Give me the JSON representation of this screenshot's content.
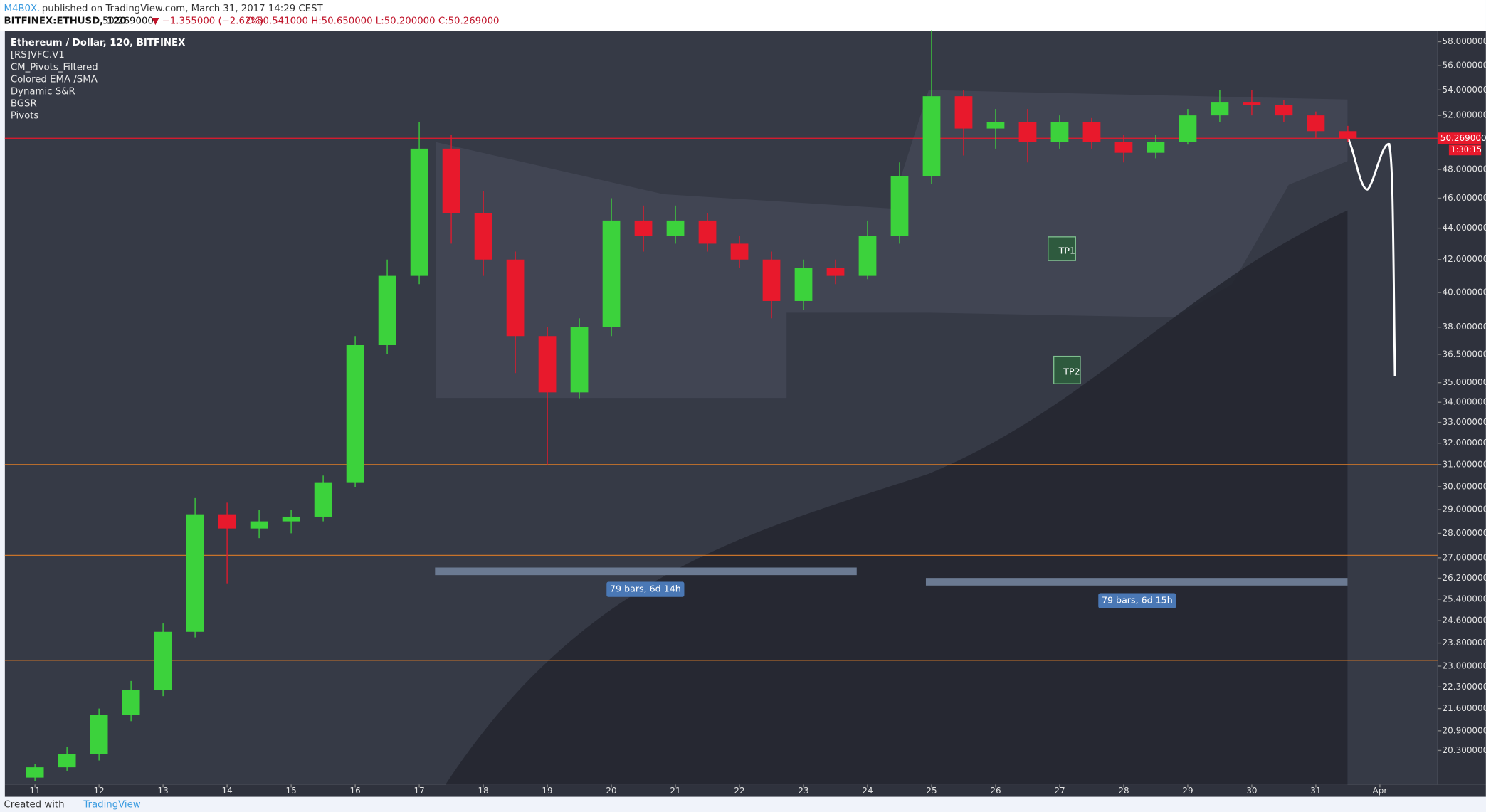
{
  "chart_data": {
    "type": "candlestick",
    "publisher": "M4B0X.",
    "published": "published on TradingView.com, March 31, 2017 14:29 CEST",
    "symbol": "BITFINEX:ETHUSD, 120",
    "price": "50.269000",
    "change": "▼ −1.355000 (−2.62%)",
    "ohlc_text": "O:50.541000 H:50.650000 L:50.200000 C:50.269000",
    "title": "Ethereum / Dollar, 120, BITFINEX",
    "indicators": [
      "[RS]VFC.V1",
      "CM_Pivots_Filtered",
      "Colored EMA /SMA",
      "Dynamic S&R",
      "BGSR",
      "Pivots"
    ],
    "x": [
      11,
      11.5,
      12,
      12.5,
      13,
      13.5,
      14,
      14.5,
      15,
      15.5,
      16,
      16.5,
      17,
      17.5,
      18,
      18.5,
      19,
      19.5,
      20,
      20.5,
      21,
      21.5,
      22,
      22.5,
      23,
      23.5,
      24,
      24.5,
      25,
      25.5,
      26,
      26.5,
      27,
      27.5,
      28,
      28.5,
      29,
      29.5,
      30,
      30.5,
      31,
      31.5
    ],
    "open": [
      19.5,
      19.8,
      20.2,
      21.4,
      22.2,
      24.2,
      28.8,
      28.2,
      28.5,
      28.7,
      30.2,
      37.0,
      41.0,
      49.5,
      45.0,
      42.0,
      37.5,
      34.5,
      38.0,
      44.5,
      43.5,
      44.5,
      43.0,
      42.0,
      39.5,
      41.5,
      41.0,
      43.5,
      47.5,
      53.5,
      51.0,
      51.5,
      50.0,
      51.5,
      50.0,
      49.2,
      50.0,
      52.0,
      53.0,
      52.8,
      52.0,
      50.8
    ],
    "high": [
      19.9,
      20.4,
      21.6,
      22.5,
      24.5,
      29.5,
      29.3,
      29.0,
      29.0,
      30.5,
      37.5,
      42.0,
      51.5,
      50.5,
      46.5,
      42.5,
      38.0,
      38.5,
      46.0,
      45.5,
      45.5,
      45.0,
      43.5,
      42.5,
      42.0,
      42.0,
      44.5,
      48.5,
      59.0,
      54.0,
      52.5,
      52.5,
      52.0,
      51.8,
      50.5,
      50.5,
      52.5,
      54.0,
      54.0,
      53.2,
      52.3,
      51.2
    ],
    "low": [
      19.4,
      19.7,
      20.0,
      21.2,
      22.0,
      24.0,
      26.0,
      27.8,
      28.0,
      28.5,
      30.0,
      36.5,
      40.5,
      43.0,
      41.0,
      35.5,
      31.0,
      34.2,
      37.5,
      42.5,
      43.0,
      42.5,
      41.5,
      38.5,
      39.0,
      40.5,
      40.8,
      43.0,
      47.0,
      49.0,
      49.5,
      48.5,
      49.5,
      49.5,
      48.5,
      48.8,
      49.8,
      51.5,
      52.0,
      51.5,
      50.3,
      50.0
    ],
    "close": [
      19.8,
      20.2,
      21.4,
      22.2,
      24.2,
      28.8,
      28.2,
      28.5,
      28.7,
      30.2,
      37.0,
      41.0,
      49.5,
      45.0,
      42.0,
      37.5,
      34.5,
      38.0,
      44.5,
      43.5,
      44.5,
      43.0,
      42.0,
      39.5,
      41.5,
      41.0,
      43.5,
      47.5,
      53.5,
      51.0,
      51.5,
      50.0,
      51.5,
      50.0,
      49.2,
      50.0,
      52.0,
      53.0,
      52.8,
      52.0,
      50.8,
      50.269
    ],
    "up_color": "#3cd23c",
    "down_color": "#e8192c",
    "xlim": [
      10.53,
      32.9
    ],
    "xticks": [
      {
        "value": 11,
        "label": "11"
      },
      {
        "value": 12,
        "label": "12"
      },
      {
        "value": 13,
        "label": "13"
      },
      {
        "value": 14,
        "label": "14"
      },
      {
        "value": 15,
        "label": "15"
      },
      {
        "value": 16,
        "label": "16"
      },
      {
        "value": 17,
        "label": "17"
      },
      {
        "value": 18,
        "label": "18"
      },
      {
        "value": 19,
        "label": "19"
      },
      {
        "value": 20,
        "label": "20"
      },
      {
        "value": 21,
        "label": "21"
      },
      {
        "value": 22,
        "label": "22"
      },
      {
        "value": 23,
        "label": "23"
      },
      {
        "value": 24,
        "label": "24"
      },
      {
        "value": 25,
        "label": "25"
      },
      {
        "value": 26,
        "label": "26"
      },
      {
        "value": 27,
        "label": "27"
      },
      {
        "value": 28,
        "label": "28"
      },
      {
        "value": 29,
        "label": "29"
      },
      {
        "value": 30,
        "label": "30"
      },
      {
        "value": 31,
        "label": "31"
      },
      {
        "value": 32,
        "label": "Apr"
      }
    ],
    "ylim": [
      19.3,
      58.9
    ],
    "log_scale": true,
    "yticks": [
      {
        "value": 58,
        "label": "58.000000"
      },
      {
        "value": 56,
        "label": "56.000000"
      },
      {
        "value": 54,
        "label": "54.000000"
      },
      {
        "value": 52,
        "label": "52.000000"
      },
      {
        "value": 48,
        "label": "48.000000"
      },
      {
        "value": 46,
        "label": "46.000000"
      },
      {
        "value": 44,
        "label": "44.000000"
      },
      {
        "value": 42,
        "label": "42.000000"
      },
      {
        "value": 40,
        "label": "40.000000"
      },
      {
        "value": 38,
        "label": "38.000000"
      },
      {
        "value": 36.5,
        "label": "36.500000"
      },
      {
        "value": 35,
        "label": "35.000000"
      },
      {
        "value": 34,
        "label": "34.000000"
      },
      {
        "value": 33,
        "label": "33.000000"
      },
      {
        "value": 32,
        "label": "32.000000"
      },
      {
        "value": 31,
        "label": "31.000000"
      },
      {
        "value": 30,
        "label": "30.000000"
      },
      {
        "value": 29,
        "label": "29.000000"
      },
      {
        "value": 28,
        "label": "28.000000"
      },
      {
        "value": 27,
        "label": "27.000000"
      },
      {
        "value": 26.2,
        "label": "26.200000"
      },
      {
        "value": 25.4,
        "label": "25.400000"
      },
      {
        "value": 24.6,
        "label": "24.600000"
      },
      {
        "value": 23.8,
        "label": "23.800000"
      },
      {
        "value": 23,
        "label": "23.000000"
      },
      {
        "value": 22.3,
        "label": "22.300000"
      },
      {
        "value": 21.6,
        "label": "21.600000"
      },
      {
        "value": 20.9,
        "label": "20.900000"
      },
      {
        "value": 20.3,
        "label": "20.300000"
      }
    ],
    "grid": false,
    "hlines": [
      {
        "value": 50.269,
        "color": "#e8192c"
      },
      {
        "value": 31,
        "color": "#c8732a"
      },
      {
        "value": 27.1,
        "color": "#c8732a"
      },
      {
        "value": 23.2,
        "color": "#c8732a"
      }
    ],
    "last_price": {
      "value": 50.269,
      "label": "50.269000"
    },
    "countdown": "1:30:15",
    "annotations": [
      "TP1",
      "TP2",
      "79 bars, 6d 14h",
      "79 bars, 6d 15h"
    ],
    "footer": "Created with",
    "brand": "TradingView"
  }
}
